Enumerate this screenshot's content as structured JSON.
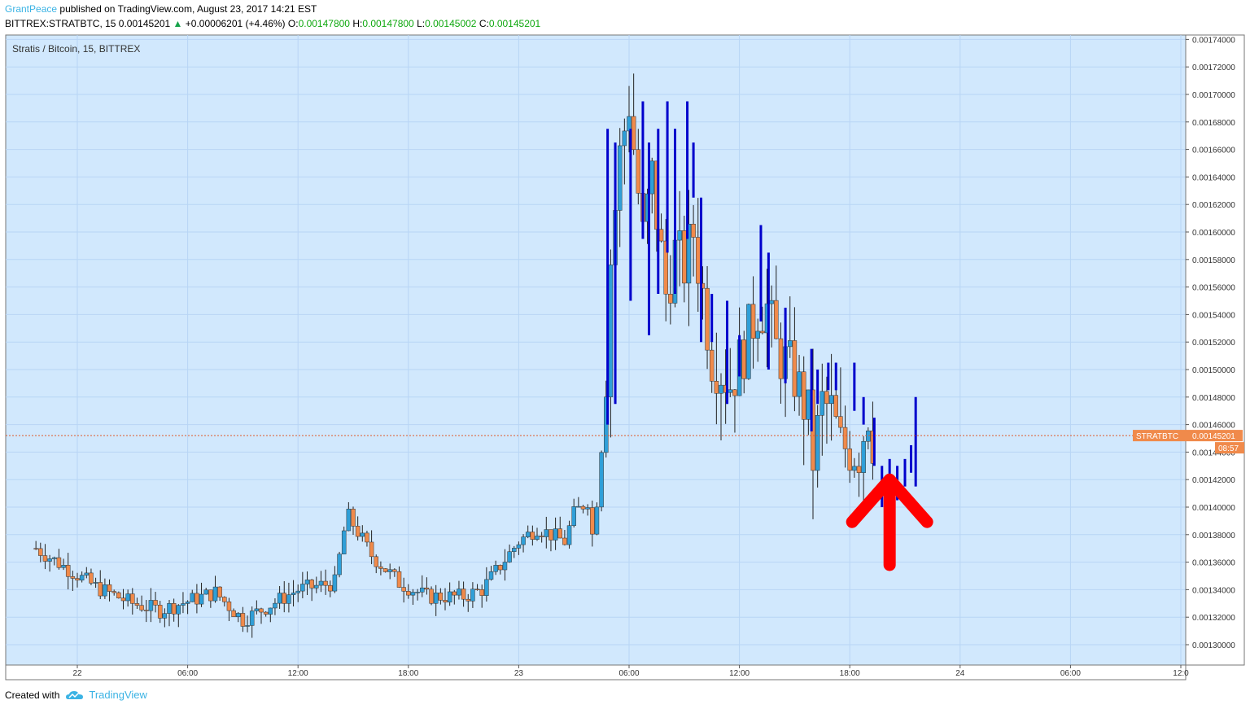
{
  "header": {
    "author": "GrantPeace",
    "published_text": "published on TradingView.com, August 23, 2017 14:21 EST",
    "symbol_line": "BITTREX:STRATBTC, 15  0.00145201",
    "change_arrow": "▲",
    "change_text": "+0.00006201 (+4.46%)",
    "o_label": "O:",
    "o_value": "0.00147800",
    "h_label": "H:",
    "h_value": "0.00147800",
    "l_label": "L:",
    "l_value": "0.00145002",
    "c_label": "C:",
    "c_value": "0.00145201"
  },
  "footer": {
    "created_with": "Created with",
    "brand": "TradingView"
  },
  "colors": {
    "plot_bg": "#d1e8fd",
    "grid": "#b8d5f5",
    "up_candle": "#2f9fd8",
    "down_candle": "#f08a4b",
    "wick": "#222222",
    "annotation_lines": "#0000cc",
    "arrow": "#ff0000",
    "price_label_bg": "#f08a4b",
    "last_price_line": "#e05a2b"
  },
  "chart_data": {
    "type": "candlestick",
    "title": "Stratis / Bitcoin, 15, BITTREX",
    "symbol": "STRATBTC",
    "last_price": 0.00145201,
    "countdown": "08:57",
    "ylim": [
      0.00129,
      0.00174
    ],
    "y_ticks": [
      "0.00130000",
      "0.00132000",
      "0.00134000",
      "0.00136000",
      "0.00138000",
      "0.00140000",
      "0.00142000",
      "0.00144000",
      "0.00146000",
      "0.00148000",
      "0.00150000",
      "0.00152000",
      "0.00154000",
      "0.00156000",
      "0.00158000",
      "0.00160000",
      "0.00162000",
      "0.00164000",
      "0.00166000",
      "0.00168000",
      "0.00170000",
      "0.00172000",
      "0.00174000"
    ],
    "x_ticks": [
      "22",
      "06:00",
      "12:00",
      "18:00",
      "23",
      "06:00",
      "12:00",
      "18:00",
      "24",
      "06:00",
      "12:0"
    ],
    "grid": true,
    "trend": [
      [
        "21 21:45",
        0.00137
      ],
      [
        "22 01:00",
        0.001342
      ],
      [
        "22 03:00",
        0.00133
      ],
      [
        "22 04:30",
        0.001325
      ],
      [
        "22 07:30",
        0.001338
      ],
      [
        "22 09:00",
        0.001318
      ],
      [
        "22 12:00",
        0.00134
      ],
      [
        "22 14:00",
        0.001345
      ],
      [
        "22 14:40",
        0.001395
      ],
      [
        "22 16:00",
        0.001365
      ],
      [
        "22 17:30",
        0.001345
      ],
      [
        "22 19:00",
        0.001335
      ],
      [
        "22 21:00",
        0.001335
      ],
      [
        "22 22:00",
        0.00134
      ],
      [
        "23 00:00",
        0.001375
      ],
      [
        "23 01:00",
        0.001385
      ],
      [
        "23 02:30",
        0.001375
      ],
      [
        "23 03:00",
        0.001395
      ],
      [
        "23 03:45",
        0.001405
      ],
      [
        "23 04:00",
        0.00138
      ],
      [
        "23 04:15",
        0.001405
      ],
      [
        "23 04:40",
        0.00147
      ],
      [
        "23 05:00",
        0.00158
      ],
      [
        "23 05:30",
        0.001655
      ],
      [
        "23 06:00",
        0.001695
      ],
      [
        "23 06:45",
        0.001595
      ],
      [
        "23 07:15",
        0.00164
      ],
      [
        "23 08:00",
        0.001555
      ],
      [
        "23 08:30",
        0.001585
      ],
      [
        "23 09:00",
        0.001575
      ],
      [
        "23 09:30",
        0.0016
      ],
      [
        "23 10:00",
        0.001555
      ],
      [
        "23 10:30",
        0.00151
      ],
      [
        "23 11:30",
        0.00149
      ],
      [
        "23 12:00",
        0.001505
      ],
      [
        "23 13:00",
        0.001545
      ],
      [
        "23 13:30",
        0.001545
      ],
      [
        "23 14:00",
        0.001515
      ],
      [
        "23 15:00",
        0.001495
      ],
      [
        "23 15:45",
        0.001465
      ],
      [
        "23 16:00",
        0.001435
      ],
      [
        "23 16:30",
        0.001475
      ],
      [
        "23 17:00",
        0.00147
      ],
      [
        "23 17:30",
        0.001445
      ],
      [
        "23 18:30",
        0.00144
      ],
      [
        "23 19:00",
        0.00147
      ],
      [
        "23 19:15",
        0.00145
      ]
    ],
    "annotation_lines": [
      [
        "23 04:50",
        0.00146,
        0.001675
      ],
      [
        "23 05:15",
        0.001475,
        0.001665
      ],
      [
        "23 06:05",
        0.00155,
        0.001675
      ],
      [
        "23 06:45",
        0.001595,
        0.001695
      ],
      [
        "23 07:05",
        0.001525,
        0.001665
      ],
      [
        "23 07:35",
        0.001555,
        0.001675
      ],
      [
        "23 08:05",
        0.001585,
        0.001695
      ],
      [
        "23 08:30",
        0.001555,
        0.001675
      ],
      [
        "23 09:10",
        0.001595,
        0.001695
      ],
      [
        "23 09:30",
        0.001625,
        0.001665
      ],
      [
        "23 09:55",
        0.00152,
        0.001625
      ],
      [
        "23 10:30",
        0.00152,
        0.001555
      ],
      [
        "23 11:20",
        0.001475,
        0.00155
      ],
      [
        "23 12:00",
        0.001495,
        0.001525
      ],
      [
        "23 13:10",
        0.001535,
        0.001605
      ],
      [
        "23 13:35",
        0.0015,
        0.001585
      ],
      [
        "23 14:30",
        0.00149,
        0.001545
      ],
      [
        "23 15:55",
        0.001455,
        0.001515
      ],
      [
        "23 16:15",
        0.001475,
        0.0015
      ],
      [
        "23 16:50",
        0.001485,
        0.001505
      ],
      [
        "23 17:15",
        0.001485,
        0.001505
      ],
      [
        "23 18:15",
        0.00147,
        0.001505
      ],
      [
        "23 18:45",
        0.00146,
        0.00148
      ],
      [
        "23 19:20",
        0.00143,
        0.001465
      ],
      [
        "23 19:45",
        0.0014,
        0.00143
      ],
      [
        "23 20:10",
        0.0014,
        0.001435
      ],
      [
        "23 20:35",
        0.001405,
        0.00143
      ],
      [
        "23 21:00",
        0.001415,
        0.001435
      ],
      [
        "23 21:20",
        0.001425,
        0.001445
      ],
      [
        "23 21:35",
        0.001415,
        0.00148
      ]
    ],
    "annotation_arrow": {
      "direction": "up",
      "tip_time": "23 20:10",
      "tip_price": 0.00142,
      "base_price": 0.001358
    }
  }
}
